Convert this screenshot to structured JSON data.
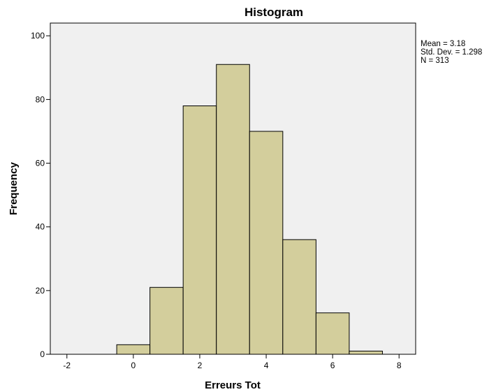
{
  "chart_data": {
    "type": "bar",
    "title": "Histogram",
    "xlabel": "Erreurs Tot",
    "ylabel": "Frequency",
    "bin_width": 1,
    "bins": [
      {
        "center": 0,
        "value": 3
      },
      {
        "center": 1,
        "value": 21
      },
      {
        "center": 2,
        "value": 78
      },
      {
        "center": 3,
        "value": 91
      },
      {
        "center": 4,
        "value": 70
      },
      {
        "center": 5,
        "value": 36
      },
      {
        "center": 6,
        "value": 13
      },
      {
        "center": 7,
        "value": 1
      }
    ],
    "xlim": [
      -2.5,
      8.5
    ],
    "ylim": [
      0,
      104
    ],
    "x_ticks": [
      -2,
      0,
      2,
      4,
      6,
      8
    ],
    "x_tick_labels": [
      "-2",
      "0",
      "2",
      "4",
      "6",
      "8"
    ],
    "y_ticks": [
      0,
      20,
      40,
      60,
      80,
      100
    ],
    "y_tick_labels": [
      "0",
      "20",
      "40",
      "60",
      "80",
      "100"
    ],
    "stats": [
      "Mean = 3.18",
      "Std. Dev. = 1.298",
      "N = 313"
    ],
    "legend_placement": "top-right, outside plot",
    "grid": false,
    "colors": {
      "bar_fill": "#d3ce9c",
      "bar_stroke": "#000000",
      "plot_background": "#f0f0f0"
    }
  }
}
